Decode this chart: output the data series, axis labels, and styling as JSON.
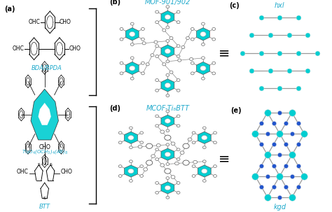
{
  "bg_color": "#ffffff",
  "cyan": "#00CED1",
  "cyan2": "#20B8C8",
  "blue": "#2255CC",
  "gray_edge": "#999999",
  "dark": "#222222",
  "label_cyan": "#20AACC",
  "fig_width": 4.74,
  "fig_height": 3.03,
  "hxl_label": "hxl",
  "kgd_label": "kgd",
  "mof_label": "MOF-901/902",
  "mcof_label": "MCOF-Ti₈BTT"
}
